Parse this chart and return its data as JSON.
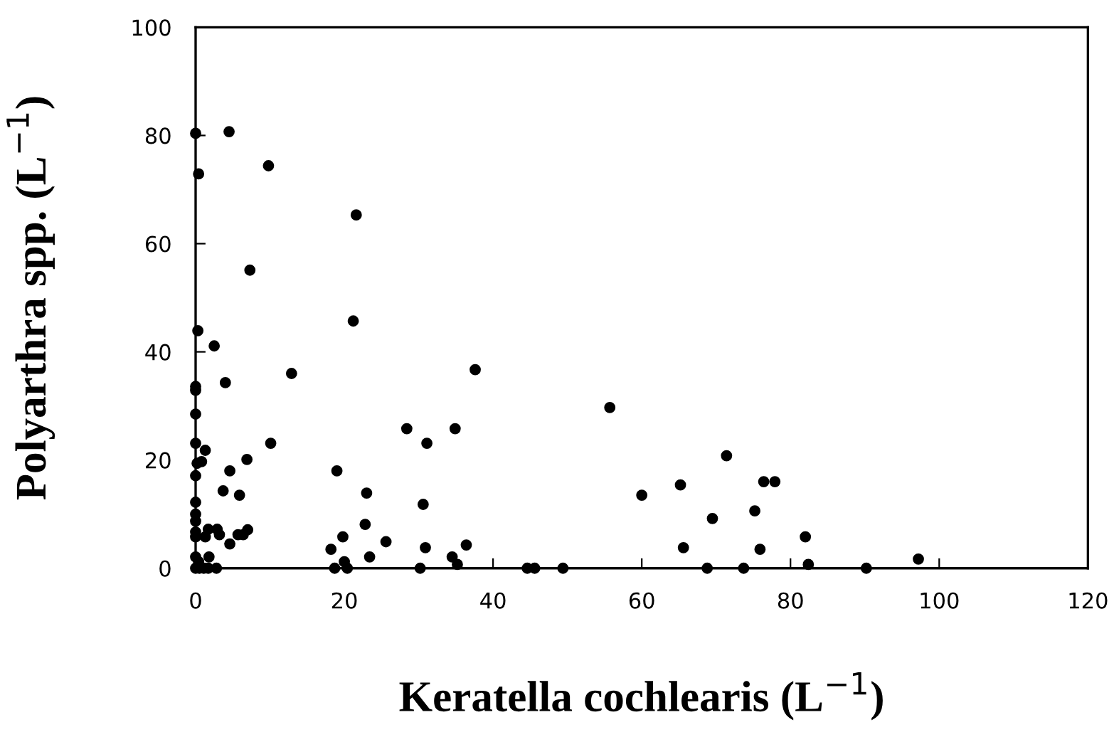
{
  "chart_data": {
    "type": "scatter",
    "xlabel": "Keratella cochlearis (L$^{−1}$)",
    "ylabel": "Polyarthra spp. (L$^{−1}$)",
    "xlim": [
      0,
      120
    ],
    "xticks": [
      0,
      20,
      40,
      60,
      80,
      100,
      120
    ],
    "ylim": [
      0,
      100
    ],
    "yticks": [
      0,
      20,
      40,
      60,
      80,
      100
    ],
    "grid": false,
    "marker": "circle",
    "series": [
      {
        "color": "#000000",
        "x": [
          0,
          4.5,
          0.4,
          9.8,
          21.6,
          7.3,
          21.2,
          0.3,
          2.5,
          4.0,
          12.9,
          37.6,
          0,
          0,
          0,
          55.7,
          28.4,
          34.9,
          31.1,
          10.1,
          0,
          1.3,
          71.4,
          6.9,
          0.8,
          0.2,
          4.6,
          19.0,
          0,
          76.4,
          77.9,
          65.2,
          3.7,
          60.0,
          5.9,
          23.0,
          0,
          30.6,
          75.2,
          0,
          69.5,
          0,
          22.8,
          7.0,
          1.7,
          2.9,
          3.2,
          5.7,
          6.4,
          0,
          0,
          1.3,
          19.8,
          82.0,
          4.6,
          25.6,
          36.4,
          18.2,
          30.9,
          65.6,
          75.9,
          0,
          1.8,
          23.4,
          34.5,
          97.2,
          20.0,
          35.2,
          82.4,
          0.4,
          0,
          0.5,
          1.1,
          1.7,
          2.8,
          18.7,
          20.4,
          30.2,
          44.6,
          45.6,
          49.4,
          68.8,
          73.7,
          90.2
        ],
        "values": [
          80.4,
          80.7,
          72.9,
          74.4,
          65.3,
          55.1,
          45.7,
          43.9,
          41.1,
          34.3,
          36.0,
          36.7,
          33.6,
          32.9,
          28.5,
          29.7,
          25.8,
          25.8,
          23.1,
          23.1,
          23.1,
          21.8,
          20.8,
          20.1,
          19.7,
          19.4,
          18.0,
          18.0,
          17.1,
          16.0,
          16.0,
          15.4,
          14.3,
          13.5,
          13.5,
          13.9,
          12.2,
          11.8,
          10.6,
          10.0,
          9.2,
          8.7,
          8.1,
          7.1,
          7.2,
          7.2,
          6.2,
          6.2,
          6.2,
          6.7,
          5.8,
          5.8,
          5.8,
          5.8,
          4.5,
          4.9,
          4.3,
          3.5,
          3.8,
          3.8,
          3.5,
          2.1,
          2.1,
          2.1,
          2.1,
          1.7,
          1.2,
          0.7,
          0.7,
          1.2,
          0,
          0,
          0,
          0,
          0,
          0,
          0,
          0,
          0,
          0,
          0,
          0,
          0,
          0
        ]
      }
    ]
  }
}
